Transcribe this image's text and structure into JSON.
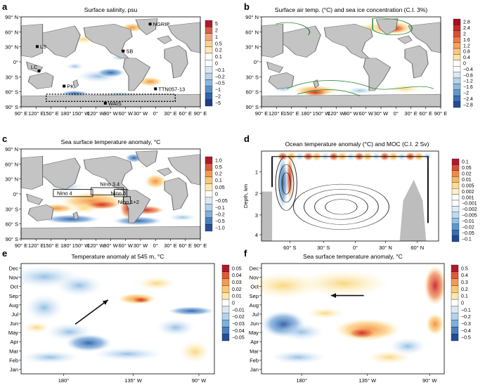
{
  "chart_data": [
    {
      "id": "a",
      "type": "heatmap",
      "panel_label": "a",
      "title": "Surface salinity, psu",
      "x_ticks": [
        "90° E",
        "120° E",
        "150° E",
        "180°",
        "150° W",
        "120° W",
        "90° W",
        "60° W",
        "30° W",
        "0°",
        "30° E",
        "60° E",
        "90° E"
      ],
      "y_ticks": [
        "90° N",
        "60° N",
        "30° N",
        "0°",
        "30° S",
        "60° S",
        "90° S"
      ],
      "colorbar": [
        "5",
        "2",
        "1",
        "0.5",
        "0.2",
        "0.1",
        "0",
        "−0.1",
        "−0.2",
        "−0.5",
        "−1",
        "−2",
        "−5"
      ],
      "annotations": [
        "NGRIP",
        "LS",
        "SB",
        "LC",
        "PK",
        "TTN057-13",
        "WAIS"
      ]
    },
    {
      "id": "b",
      "type": "heatmap",
      "panel_label": "b",
      "title": "Surface air temp. (°C) and sea ice concentration (C.I. 3%)",
      "x_ticks": [
        "90° E",
        "120° E",
        "150° E",
        "180°",
        "150° W",
        "120° W",
        "90° W",
        "60° W",
        "30° W",
        "0°",
        "30° E",
        "60° E",
        "90° E"
      ],
      "y_ticks": [
        "90° N",
        "60° N",
        "30° N",
        "0°",
        "30° S",
        "60° S",
        "90° S"
      ],
      "colorbar": [
        "2.8",
        "2.4",
        "2",
        "1.6",
        "1.2",
        "0.8",
        "0.4",
        "0",
        "−0.4",
        "−0.8",
        "−1.2",
        "−1.6",
        "−2",
        "−2.4",
        "−2.8"
      ]
    },
    {
      "id": "c",
      "type": "heatmap",
      "panel_label": "c",
      "title": "Sea surface temperature anomaly, °C",
      "x_ticks": [
        "90° E",
        "120° E",
        "150° E",
        "180°",
        "150° W",
        "120° W",
        "90° W",
        "60° W",
        "30° W",
        "0°",
        "30° E",
        "60° E",
        "90° E"
      ],
      "y_ticks": [
        "90° N",
        "60° N",
        "30° N",
        "0°",
        "30° S",
        "60° S",
        "90° S"
      ],
      "colorbar": [
        "1.0",
        "0.5",
        "0.2",
        "0.1",
        "0.05",
        "0",
        "−0.05",
        "−0.1",
        "−0.2",
        "−0.5",
        "−1.0"
      ],
      "annotations": [
        "Nino 4",
        "Nino 3.4",
        "Nino 3",
        "Nino 1+2"
      ]
    },
    {
      "id": "d",
      "type": "heatmap",
      "panel_label": "d",
      "title": "Ocean temperature anomaly (°C) and MOC (C.I. 2 Sv)",
      "x_ticks": [
        "60° S",
        "30° S",
        "0°",
        "30° N",
        "60° N"
      ],
      "y_ticks": [
        "1",
        "2",
        "3",
        "4"
      ],
      "ylabel": "Depth, km",
      "colorbar": [
        "0.1",
        "0.05",
        "0.02",
        "0.01",
        "0.005",
        "0.002",
        "0.001",
        "−0.001",
        "−0.002",
        "−0.005",
        "−0.01",
        "−0.02",
        "−0.05",
        "−0.1"
      ]
    },
    {
      "id": "e",
      "type": "heatmap",
      "panel_label": "e",
      "title": "Temperature anomaly at 545 m, °C",
      "x_ticks": [
        "180°",
        "135° W",
        "90° W"
      ],
      "y_ticks": [
        "Dec",
        "Nov",
        "Oct",
        "Sep",
        "Aug",
        "Jul",
        "Jun",
        "May",
        "Apr",
        "Mar",
        "Feb",
        "Jan"
      ],
      "colorbar": [
        "0.05",
        "0.04",
        "0.03",
        "0.02",
        "0.01",
        "0",
        "−0.01",
        "−0.02",
        "−0.03",
        "−0.04",
        "−0.05"
      ]
    },
    {
      "id": "f",
      "type": "heatmap",
      "panel_label": "f",
      "title": "Sea surface temperature anomaly, °C",
      "x_ticks": [
        "180°",
        "135° W",
        "90° W"
      ],
      "y_ticks": [
        "Dec",
        "Nov",
        "Oct",
        "Sep",
        "Aug",
        "Jul",
        "Jun",
        "May",
        "Apr",
        "Mar",
        "Feb",
        "Jan"
      ],
      "colorbar": [
        "0.5",
        "0.4",
        "0.3",
        "0.2",
        "0.1",
        "0",
        "−0.1",
        "−0.2",
        "−0.3",
        "−0.4",
        "−0.5"
      ]
    }
  ]
}
